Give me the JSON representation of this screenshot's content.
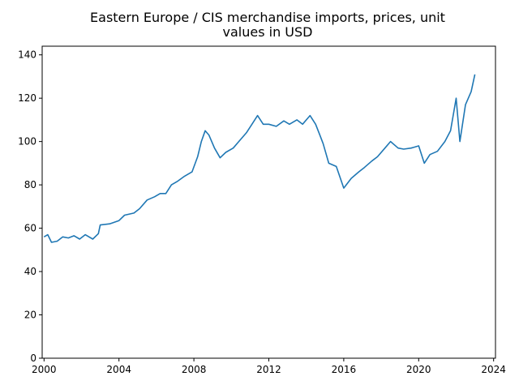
{
  "chart_data": {
    "type": "line",
    "title": "Eastern Europe / CIS merchandise imports, prices, unit values in USD",
    "title_lines": [
      "Eastern Europe / CIS merchandise imports, prices, unit",
      "values in USD"
    ],
    "xlabel": "",
    "ylabel": "",
    "xlim": [
      1999.9,
      2024.1
    ],
    "ylim": [
      0,
      144
    ],
    "x_ticks": [
      2000,
      2004,
      2008,
      2012,
      2016,
      2020,
      2024
    ],
    "y_ticks": [
      0,
      20,
      40,
      60,
      80,
      100,
      120,
      140
    ],
    "grid": false,
    "line_color": "#1f77b4",
    "series": [
      {
        "x": [
          2000.0,
          2000.2,
          2000.4,
          2000.7,
          2001.0,
          2001.3,
          2001.6,
          2001.9,
          2002.2,
          2002.6,
          2002.9,
          2003.0,
          2003.5,
          2004.0,
          2004.3,
          2004.8,
          2005.1,
          2005.5,
          2005.9,
          2006.2,
          2006.5,
          2006.8,
          2007.1,
          2007.5,
          2007.9,
          2008.2,
          2008.4,
          2008.6,
          2008.8,
          2009.1,
          2009.4,
          2009.7,
          2010.1,
          2010.4,
          2010.8,
          2011.1,
          2011.4,
          2011.7,
          2012.0,
          2012.4,
          2012.8,
          2013.1,
          2013.5,
          2013.8,
          2014.2,
          2014.5,
          2014.7,
          2014.9,
          2015.2,
          2015.6,
          2016.0,
          2016.4,
          2016.8,
          2017.1,
          2017.5,
          2017.8,
          2018.2,
          2018.5,
          2018.9,
          2019.2,
          2019.6,
          2020.0,
          2020.3,
          2020.6,
          2021.0,
          2021.4,
          2021.7,
          2022.0,
          2022.2,
          2022.5,
          2022.8,
          2023.0
        ],
        "y": [
          56,
          57,
          53.5,
          54,
          56,
          55.5,
          56.5,
          55,
          57,
          55,
          57.5,
          61.5,
          62,
          63.5,
          66,
          67,
          69,
          73,
          74.5,
          76,
          76,
          80,
          81.5,
          84,
          86,
          93,
          100,
          105,
          103,
          97,
          92.5,
          95,
          97,
          100,
          104,
          108,
          112,
          108,
          108,
          107,
          109.5,
          108,
          110,
          108,
          112,
          108,
          103.5,
          99,
          90,
          88.5,
          78.5,
          83,
          86,
          88,
          91,
          93,
          97,
          100,
          97,
          96.5,
          97,
          98,
          90,
          94,
          95.5,
          100,
          105,
          120,
          100,
          117,
          123,
          131
        ]
      }
    ]
  }
}
